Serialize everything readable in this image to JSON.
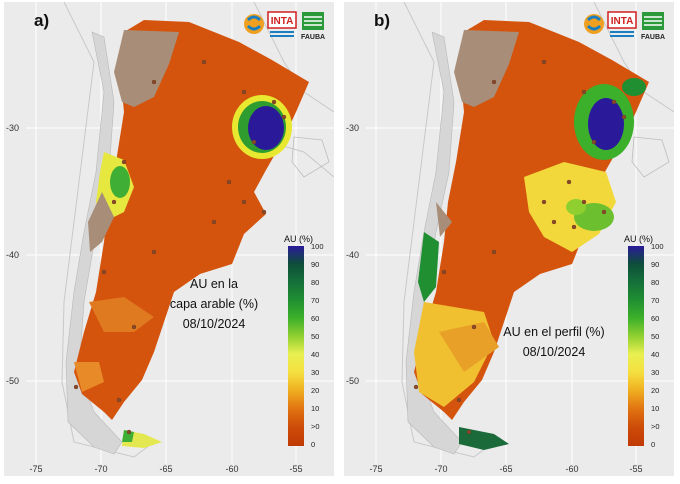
{
  "panels": [
    {
      "letter": "a)",
      "caption_lines": [
        "AU en la",
        "capa arable (%)",
        "08/10/2024"
      ]
    },
    {
      "letter": "b)",
      "caption_lines": [
        "AU en el perfil (%)",
        "08/10/2024"
      ]
    }
  ],
  "axis": {
    "x_ticks": [
      "-75",
      "-70",
      "-65",
      "-60",
      "-55"
    ],
    "y_ticks": [
      "-30",
      "-40",
      "-50"
    ]
  },
  "legend": {
    "title": "AU (%)",
    "labels": [
      "100",
      "90",
      "80",
      "70",
      "60",
      "50",
      "40",
      "30",
      "20",
      "10",
      ">0",
      "0"
    ],
    "colors": [
      "#2a1a9a",
      "#0d4f3a",
      "#15703a",
      "#1f8f32",
      "#3cb02a",
      "#8fd030",
      "#e8f050",
      "#f5e040",
      "#f0b020",
      "#e07010",
      "#cc4a08",
      "#c03a06"
    ]
  },
  "logos": {
    "inta": "INTA",
    "fauba": "FAUBA"
  }
}
